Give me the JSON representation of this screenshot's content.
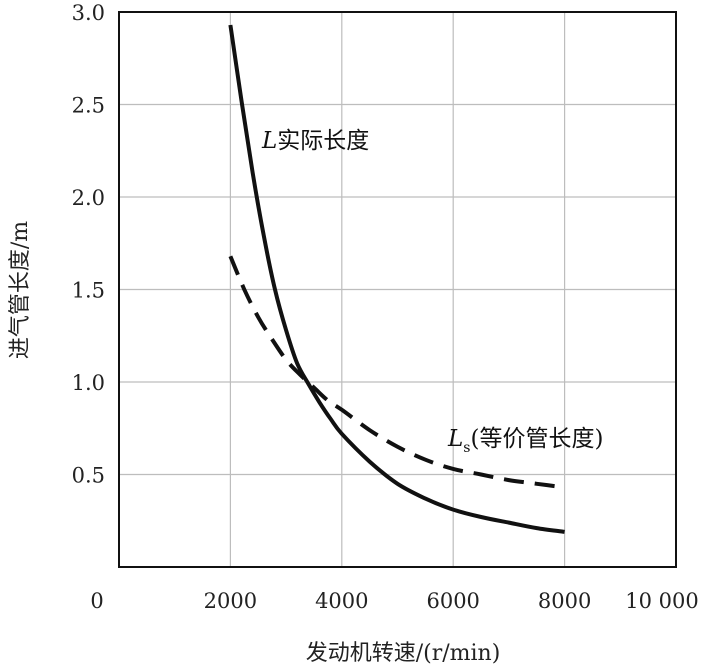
{
  "chart_data": {
    "type": "line",
    "title": "",
    "xlabel": "发动机转速/(r/min)",
    "ylabel": "进气管长度/m",
    "xlim": [
      0,
      10000
    ],
    "ylim": [
      0,
      3.0
    ],
    "grid": true,
    "xticks": [
      0,
      2000,
      4000,
      6000,
      8000,
      10000
    ],
    "xtick_labels": [
      "0",
      "2000",
      "4000",
      "6000",
      "8000",
      "10 000"
    ],
    "yticks": [
      0.5,
      1.0,
      1.5,
      2.0,
      2.5,
      3.0
    ],
    "ytick_labels": [
      "0.5",
      "1.0",
      "1.5",
      "2.0",
      "2.5",
      "3.0"
    ],
    "series": [
      {
        "name": "L实际长度",
        "label_main": "L",
        "label_sub": "",
        "label_text": "实际长度",
        "style": "solid",
        "color": "#111111",
        "x": [
          2000,
          2200,
          2400,
          2600,
          2800,
          3000,
          3200,
          3400,
          3600,
          3800,
          4000,
          4500,
          5000,
          5500,
          6000,
          6500,
          7000,
          7500,
          8000
        ],
        "y": [
          2.93,
          2.52,
          2.13,
          1.79,
          1.5,
          1.28,
          1.1,
          0.99,
          0.89,
          0.8,
          0.72,
          0.57,
          0.45,
          0.37,
          0.31,
          0.27,
          0.24,
          0.21,
          0.19
        ]
      },
      {
        "name": "Ls(等价管长度)",
        "label_main": "L",
        "label_sub": "s",
        "label_text": "(等价管长度)",
        "style": "dashed",
        "color": "#111111",
        "x": [
          2000,
          2250,
          2500,
          2750,
          3000,
          3250,
          3500,
          3750,
          4000,
          4500,
          5000,
          5500,
          6000,
          6500,
          7000,
          7500,
          8000
        ],
        "y": [
          1.68,
          1.5,
          1.35,
          1.23,
          1.12,
          1.04,
          0.97,
          0.9,
          0.85,
          0.74,
          0.65,
          0.58,
          0.53,
          0.5,
          0.47,
          0.45,
          0.43
        ]
      }
    ]
  }
}
